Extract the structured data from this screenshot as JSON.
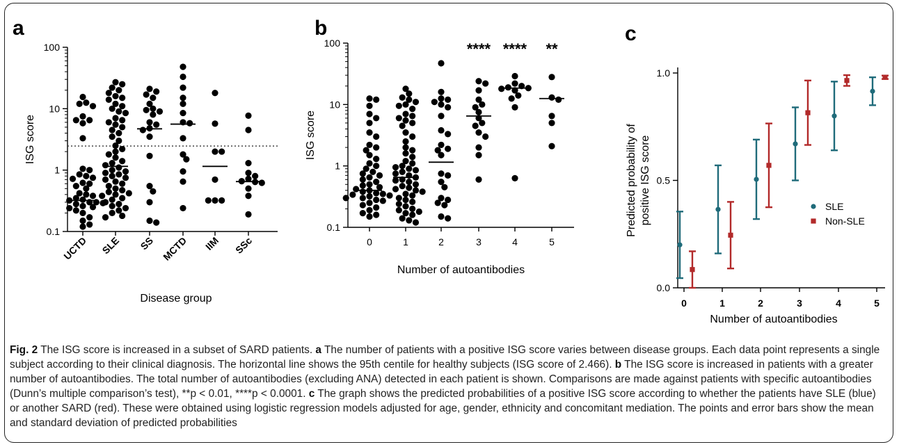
{
  "figure": {
    "panel_labels": [
      "a",
      "b",
      "c"
    ],
    "colors": {
      "sle": "#1f6b7a",
      "non_sle": "#b22a2a",
      "dots": "#000000"
    }
  },
  "chart_data": [
    {
      "type": "scatter",
      "panel": "a",
      "xlabel": "Disease group",
      "ylabel": "ISG score",
      "y_scale": "log",
      "ylim": [
        0.1,
        100
      ],
      "y_ticks": [
        0.1,
        1,
        10,
        100
      ],
      "y_tick_labels": [
        "0.1",
        "1",
        "10",
        "100"
      ],
      "categories": [
        "UCTD",
        "SLE",
        "SS",
        "MCTD",
        "IIM",
        "SSc"
      ],
      "threshold": 2.466,
      "medians": [
        0.32,
        1.15,
        4.7,
        5.6,
        1.15,
        0.65
      ],
      "groups": [
        [
          15.5,
          12.5,
          12,
          11,
          7.5,
          6.5,
          6.5,
          5.8,
          3.3,
          1.05,
          1.0,
          0.85,
          0.8,
          0.75,
          0.72,
          0.62,
          0.6,
          0.55,
          0.5,
          0.42,
          0.4,
          0.38,
          0.35,
          0.33,
          0.32,
          0.3,
          0.3,
          0.29,
          0.28,
          0.26,
          0.25,
          0.24,
          0.22,
          0.2,
          0.17,
          0.15,
          0.13,
          0.12
        ],
        [
          27,
          25,
          22,
          20,
          18,
          16,
          15,
          14,
          12,
          11,
          10,
          9,
          8.5,
          7,
          6.5,
          6,
          5.5,
          5,
          4.5,
          4,
          3.5,
          3,
          2.5,
          2.2,
          2.0,
          1.8,
          1.6,
          1.4,
          1.3,
          1.2,
          1.1,
          1.0,
          0.95,
          0.9,
          0.85,
          0.8,
          0.75,
          0.7,
          0.65,
          0.6,
          0.55,
          0.5,
          0.47,
          0.44,
          0.42,
          0.4,
          0.38,
          0.35,
          0.33,
          0.3,
          0.28,
          0.26,
          0.24,
          0.22,
          0.2,
          0.18,
          0.17
        ],
        [
          21,
          19,
          17,
          15,
          12,
          10,
          9.5,
          9,
          8,
          6,
          5.5,
          4.8,
          4.5,
          3.5,
          1.7,
          0.55,
          0.45,
          0.3,
          0.15,
          0.14
        ],
        [
          48,
          33,
          22,
          15,
          12,
          8.5,
          6,
          5.8,
          3.3,
          1.8,
          1.5,
          0.95,
          0.65,
          0.24
        ],
        [
          18,
          5.7,
          2.0,
          2.0,
          0.7,
          0.32,
          0.32,
          0.32
        ],
        [
          7.7,
          4.5,
          1.3,
          0.9,
          0.8,
          0.72,
          0.66,
          0.64,
          0.62,
          0.5,
          0.38,
          0.19
        ]
      ]
    },
    {
      "type": "scatter",
      "panel": "b",
      "xlabel": "Number of autoantibodies",
      "ylabel": "ISG score",
      "y_scale": "log",
      "ylim": [
        0.1,
        100
      ],
      "y_ticks": [
        0.1,
        1,
        10,
        100
      ],
      "y_tick_labels": [
        "0.1",
        "1",
        "10",
        "100"
      ],
      "categories": [
        "0",
        "1",
        "2",
        "3",
        "4",
        "5"
      ],
      "annotations": [
        "",
        "",
        "",
        "****",
        "****",
        "**"
      ],
      "medians": [
        0.4,
        0.65,
        1.15,
        6.5,
        18.5,
        12.5
      ],
      "groups": [
        [
          12.5,
          12,
          9.5,
          7,
          6,
          5,
          3.5,
          3,
          2.2,
          2.0,
          1.8,
          1.5,
          1.3,
          1.1,
          1.0,
          0.9,
          0.8,
          0.75,
          0.7,
          0.65,
          0.6,
          0.55,
          0.5,
          0.48,
          0.45,
          0.42,
          0.4,
          0.38,
          0.36,
          0.35,
          0.34,
          0.33,
          0.32,
          0.3,
          0.3,
          0.28,
          0.27,
          0.25,
          0.23,
          0.21,
          0.19,
          0.17,
          0.16,
          0.15
        ],
        [
          18,
          15,
          13,
          12,
          11,
          10,
          9.5,
          8.5,
          7,
          6.5,
          6,
          5.5,
          5,
          4.5,
          3.5,
          3,
          2.5,
          2.0,
          1.8,
          1.6,
          1.4,
          1.2,
          1.1,
          1.0,
          0.95,
          0.9,
          0.85,
          0.8,
          0.75,
          0.7,
          0.65,
          0.6,
          0.58,
          0.55,
          0.5,
          0.47,
          0.44,
          0.42,
          0.4,
          0.38,
          0.35,
          0.33,
          0.3,
          0.28,
          0.26,
          0.24,
          0.22,
          0.2,
          0.19,
          0.18,
          0.17,
          0.16,
          0.14,
          0.13,
          0.12
        ],
        [
          47,
          16,
          12.5,
          12,
          11,
          10,
          9,
          6.5,
          3.8,
          3.3,
          2.2,
          1.9,
          1.8,
          1.5,
          0.75,
          0.7,
          0.55,
          0.45,
          0.3,
          0.28,
          0.25,
          0.23,
          0.15,
          0.14
        ],
        [
          24,
          22,
          17,
          12,
          10,
          9,
          7.5,
          6,
          5,
          4.5,
          3.5,
          3,
          2,
          1.5,
          0.6
        ],
        [
          29,
          22,
          20,
          19,
          18.5,
          18,
          17,
          14,
          12.5,
          9,
          0.63
        ],
        [
          28,
          13,
          12,
          6.5,
          5,
          2.1
        ]
      ]
    },
    {
      "type": "scatter",
      "panel": "c",
      "xlabel": "Number of autoantibodies",
      "ylabel": "Predicted probability of\npositive ISG score",
      "ylim": [
        0,
        1
      ],
      "y_ticks": [
        0.0,
        0.5,
        1.0
      ],
      "y_tick_labels": [
        "0.0",
        "0.5",
        "1.0"
      ],
      "categories": [
        "0",
        "1",
        "2",
        "3",
        "4",
        "5"
      ],
      "legend_position": "center-right",
      "series": [
        {
          "name": "SLE",
          "marker": "circle",
          "mean": [
            0.2,
            0.365,
            0.505,
            0.67,
            0.8,
            0.915
          ],
          "sd": [
            0.155,
            0.205,
            0.185,
            0.17,
            0.16,
            0.065
          ]
        },
        {
          "name": "Non-SLE",
          "marker": "square",
          "mean": [
            0.085,
            0.245,
            0.57,
            0.815,
            0.965,
            0.98
          ],
          "sd": [
            0.085,
            0.155,
            0.195,
            0.15,
            0.025,
            0.008
          ]
        }
      ]
    }
  ],
  "caption": {
    "label": "Fig. 2",
    "title": " The ISG score is increased in a subset of SARD patients. ",
    "a_label": "a",
    "a_text": " The number of patients with a positive ISG score varies between disease groups. Each data point represents a single subject according to their clinical diagnosis. The horizontal line shows the 95th centile for healthy subjects (ISG score of 2.466). ",
    "b_label": "b",
    "b_text": " The ISG score is increased in patients with a greater number of autoantibodies. The total number of autoantibodies (excluding ANA) detected in each patient is shown. Comparisons are made against patients with specific autoantibodies (Dunn’s multiple comparison’s test), **p < 0.01, ****p < 0.0001. ",
    "c_label": "c",
    "c_text": " The graph shows the predicted probabilities of a positive ISG score according to whether the patients have SLE (blue) or another SARD (red). These were obtained using logistic regression models adjusted for age, gender, ethnicity and concomitant mediation. The points and error bars show the mean and standard deviation of predicted probabilities"
  }
}
